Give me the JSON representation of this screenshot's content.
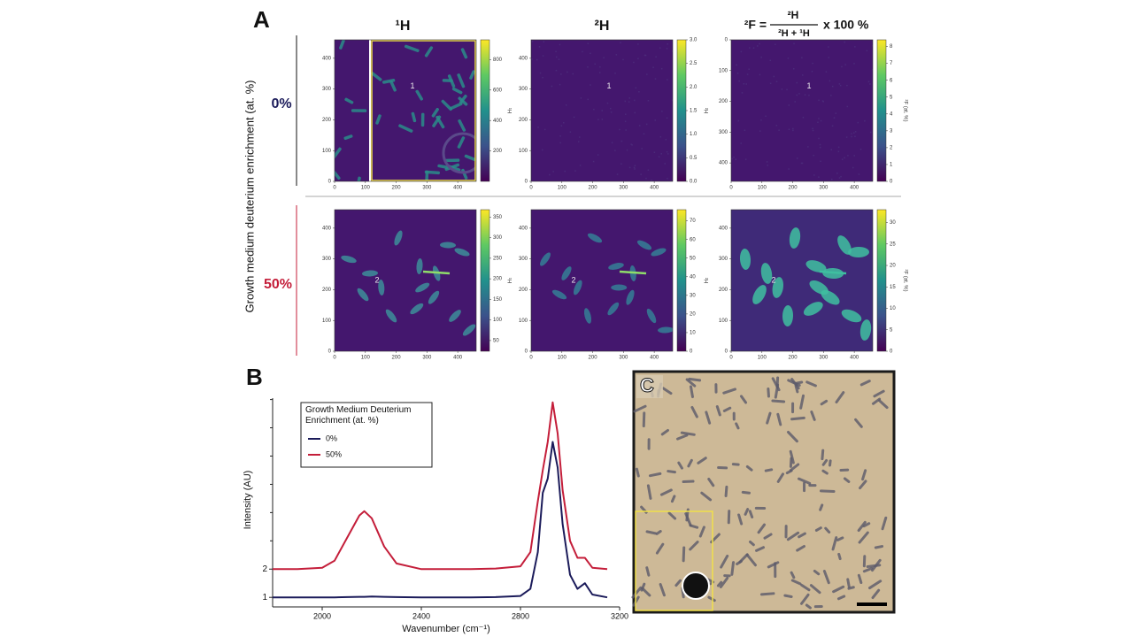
{
  "panel_labels": [
    "A",
    "B",
    "C"
  ],
  "row_axis_label": "Growth medium deuterium enrichment (at. %)",
  "row_labels": [
    "0%",
    "50%"
  ],
  "column_titles": [
    "¹H",
    "²H",
    {
      "lhs": "²F =",
      "numerator": "²H",
      "denominator": "²H + ¹H",
      "rhs": "x 100 %"
    }
  ],
  "chart_data": [
    {
      "type": "heatmap",
      "xlim": [
        0,
        460
      ],
      "ylim": [
        0,
        460
      ],
      "xticks": [
        0,
        100,
        200,
        300,
        400
      ],
      "yticks": [
        0,
        100,
        200,
        300,
        400
      ],
      "clim": [
        0,
        930
      ],
      "cticks": [
        200,
        400,
        600,
        800
      ],
      "colorbar_label": "¹H",
      "annotation": "1"
    },
    {
      "type": "heatmap",
      "xlim": [
        0,
        460
      ],
      "ylim": [
        0,
        460
      ],
      "xticks": [
        0,
        100,
        200,
        300,
        400
      ],
      "yticks": [
        0,
        100,
        200,
        300,
        400
      ],
      "clim": [
        0,
        3.0
      ],
      "cticks": [
        {
          "value": 0,
          "label": "0.0"
        },
        0.5,
        {
          "value": 1,
          "label": "1.0"
        },
        1.5,
        {
          "value": 2,
          "label": "2.0"
        },
        2.5,
        {
          "value": 3,
          "label": "3.0"
        }
      ],
      "colorbar_label": "²H",
      "annotation": "1"
    },
    {
      "type": "heatmap",
      "xlim": [
        0,
        460
      ],
      "ylim": [
        460,
        0
      ],
      "xticks": [
        0,
        100,
        200,
        300,
        400
      ],
      "yticks": [
        0,
        100,
        200,
        300,
        400
      ],
      "clim": [
        0,
        8.4
      ],
      "cticks": [
        0,
        1,
        2,
        3,
        4,
        5,
        6,
        7,
        8
      ],
      "colorbar_label": "²F (at. %)",
      "annotation": "1"
    },
    {
      "type": "heatmap",
      "xlim": [
        0,
        460
      ],
      "ylim": [
        0,
        460
      ],
      "xticks": [
        0,
        100,
        200,
        300,
        400
      ],
      "yticks": [
        0,
        100,
        200,
        300,
        400
      ],
      "clim": [
        24,
        368
      ],
      "cticks": [
        50,
        100,
        150,
        200,
        250,
        300,
        350
      ],
      "colorbar_label": "¹H",
      "annotation": "2"
    },
    {
      "type": "heatmap",
      "xlim": [
        0,
        460
      ],
      "ylim": [
        0,
        460
      ],
      "xticks": [
        0,
        100,
        200,
        300,
        400
      ],
      "yticks": [
        0,
        100,
        200,
        300,
        400
      ],
      "clim": [
        0,
        76
      ],
      "cticks": [
        0,
        10,
        20,
        30,
        40,
        50,
        60,
        70
      ],
      "colorbar_label": "²H",
      "annotation": "2"
    },
    {
      "type": "heatmap",
      "xlim": [
        0,
        460
      ],
      "ylim": [
        0,
        460
      ],
      "xticks": [
        0,
        100,
        200,
        300,
        400
      ],
      "yticks": [
        0,
        100,
        200,
        300,
        400
      ],
      "clim": [
        0,
        33
      ],
      "cticks": [
        0,
        5,
        10,
        15,
        20,
        25,
        30
      ],
      "colorbar_label": "²F (at. %)",
      "annotation": "2"
    },
    {
      "type": "line",
      "xlabel": "Wavenumber (cm⁻¹)",
      "ylabel": "Intensity (AU)",
      "x": [
        1800,
        1900,
        2000,
        2050,
        2100,
        2150,
        2170,
        2200,
        2250,
        2300,
        2400,
        2600,
        2700,
        2800,
        2840,
        2870,
        2890,
        2910,
        2930,
        2950,
        2970,
        3000,
        3030,
        3060,
        3090,
        3150
      ],
      "xlim": [
        1800,
        3200
      ],
      "xticks": [
        2000,
        2400,
        2800,
        3200
      ],
      "ylim": [
        0.85,
        8.05
      ],
      "yticks": [
        1,
        2
      ],
      "yminor_ticks": [
        3,
        4,
        5,
        6,
        7,
        8
      ],
      "legend_title": "Growth Medium Deuterium Enrichment (at. %)",
      "series": [
        {
          "name": "0%",
          "color": "#1b1b5a",
          "values": [
            1.0,
            1.0,
            1.0,
            1.0,
            1.01,
            1.02,
            1.02,
            1.03,
            1.02,
            1.01,
            1.0,
            1.0,
            1.01,
            1.05,
            1.3,
            2.6,
            4.7,
            5.2,
            6.5,
            5.6,
            3.6,
            1.8,
            1.3,
            1.5,
            1.1,
            1.0
          ]
        },
        {
          "name": "50%",
          "color": "#c41e3a",
          "values": [
            2.0,
            2.0,
            2.05,
            2.3,
            3.1,
            3.9,
            4.05,
            3.8,
            2.8,
            2.2,
            2.0,
            2.0,
            2.02,
            2.1,
            2.6,
            4.4,
            5.5,
            6.5,
            7.9,
            6.8,
            4.8,
            3.0,
            2.4,
            2.4,
            2.05,
            2.0
          ]
        }
      ]
    }
  ]
}
